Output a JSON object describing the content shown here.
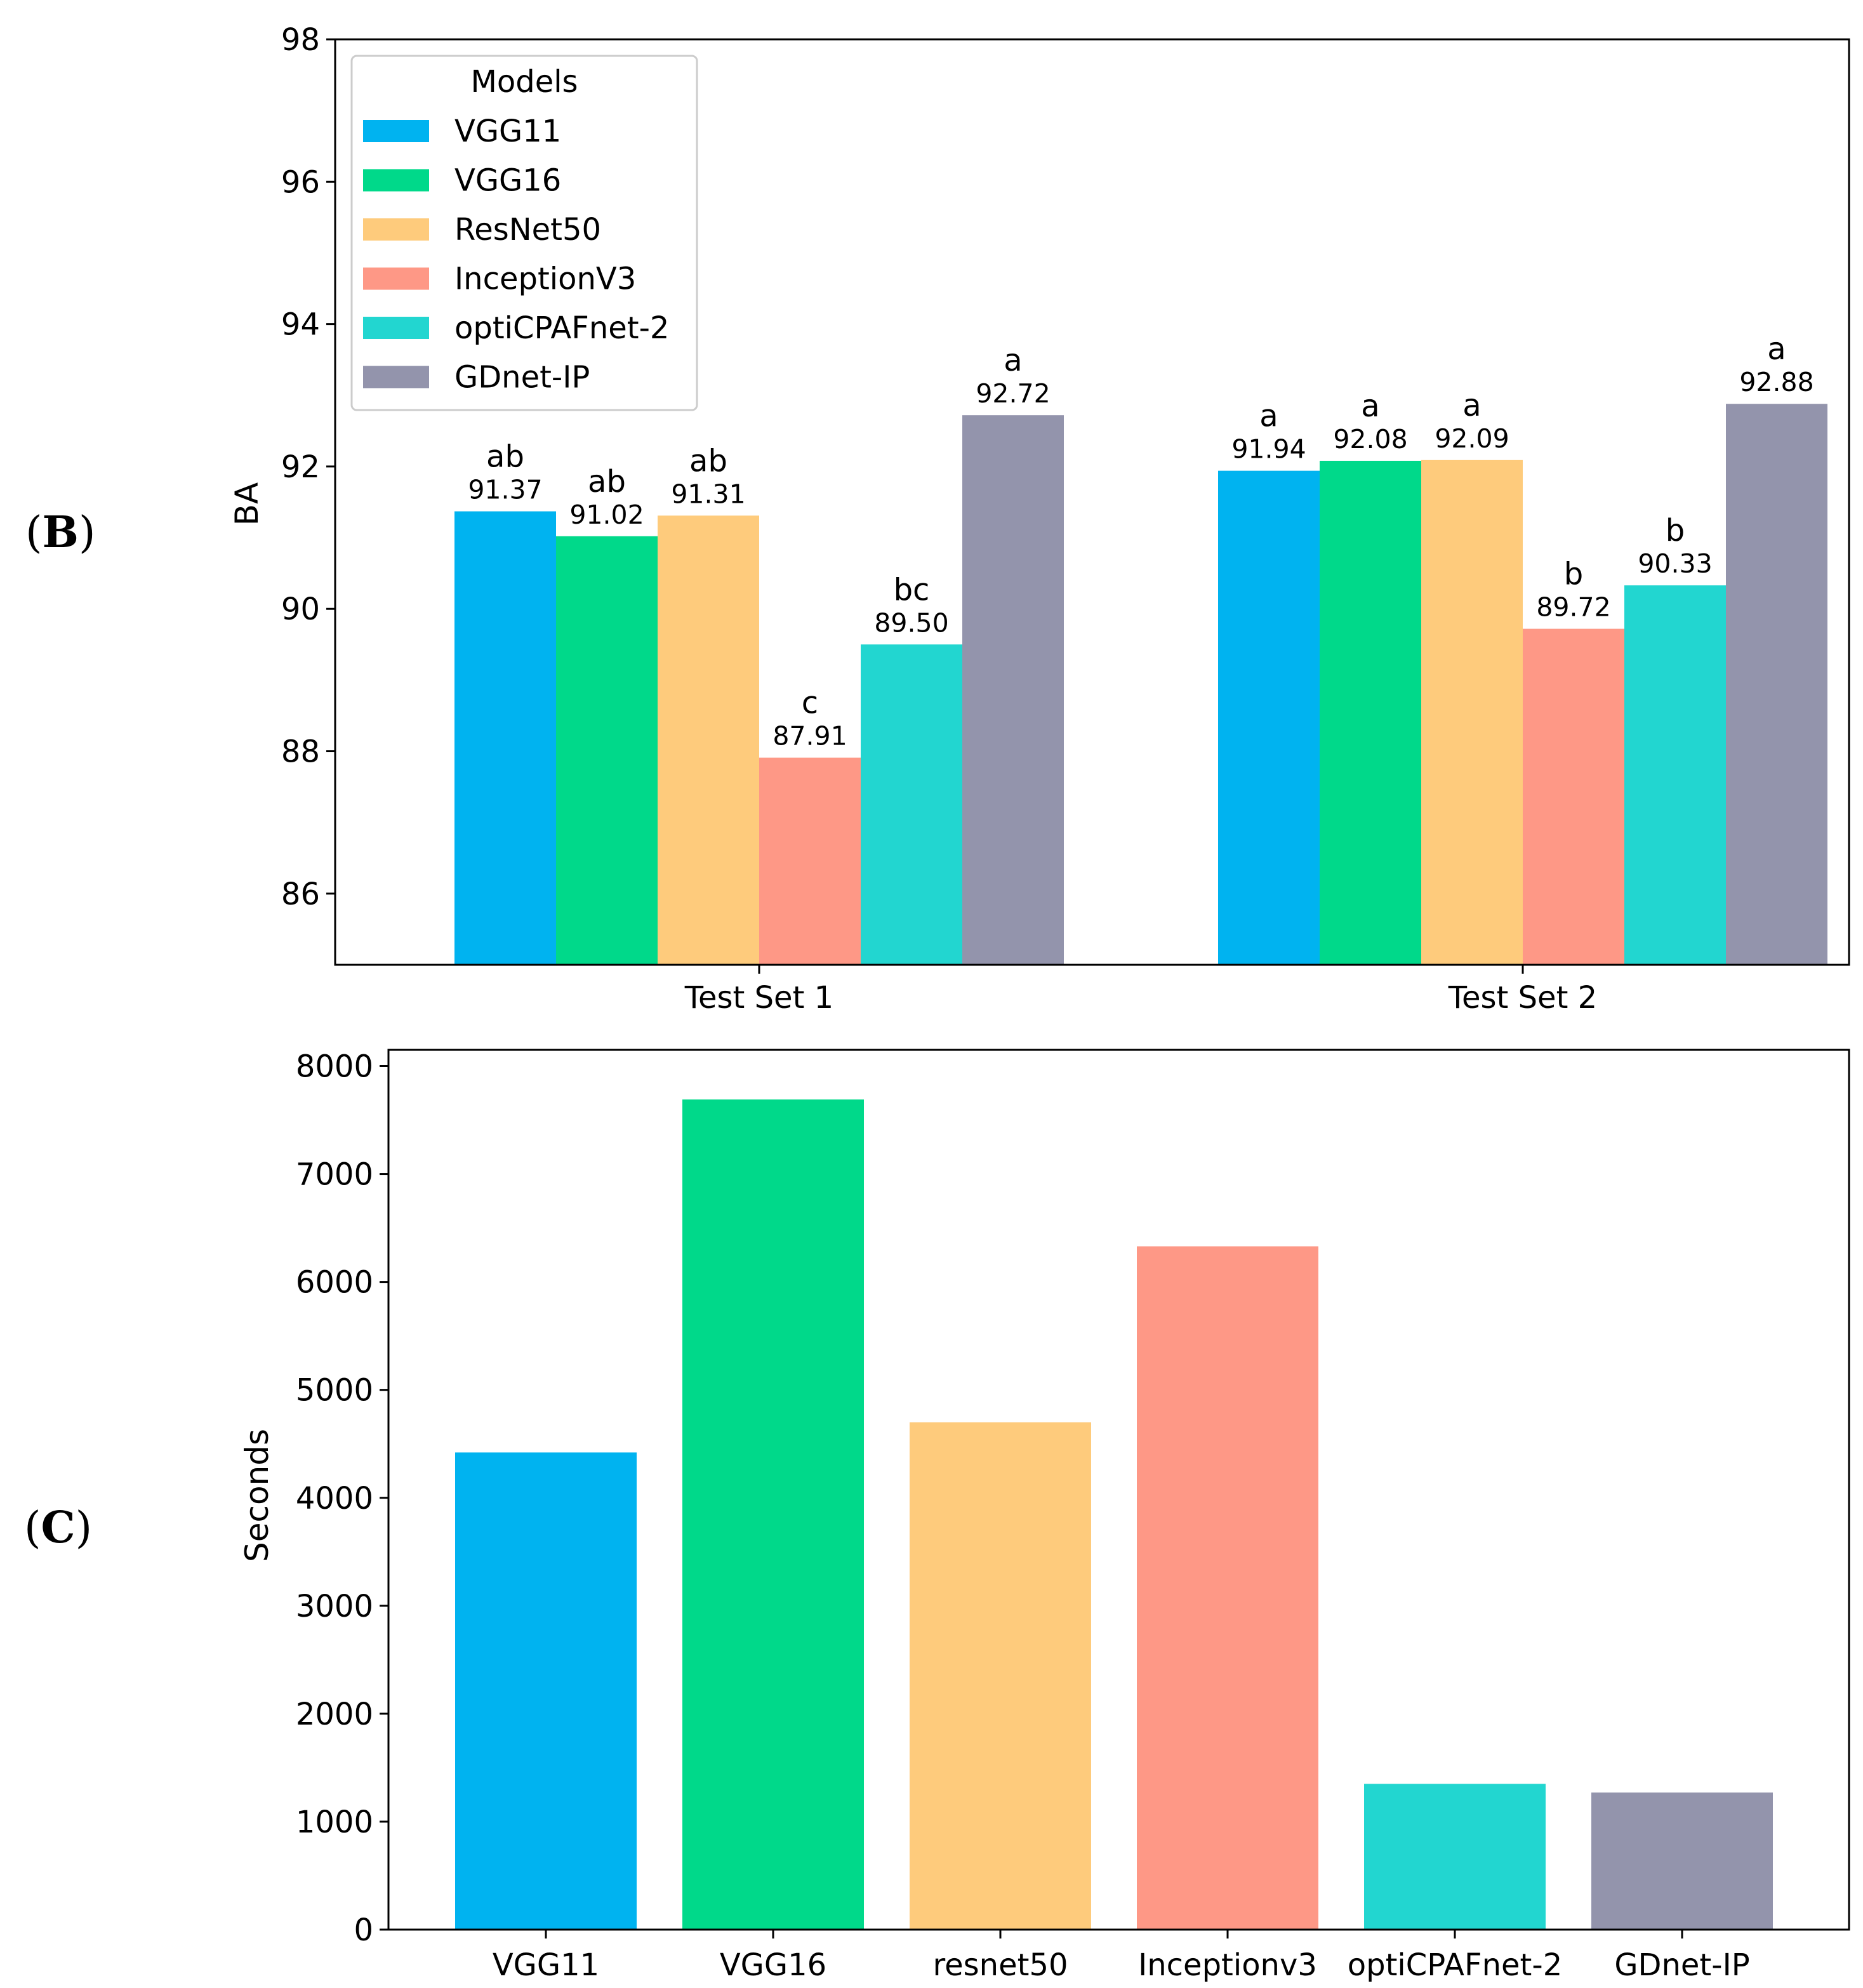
{
  "panels": {
    "b_open": "(",
    "b_letter": "B",
    "b_close": ")",
    "c_open": "(",
    "c_letter": "C",
    "c_close": ")"
  },
  "colors": {
    "VGG11": "#00b3f0",
    "VGG16": "#00d98a",
    "ResNet50": "#fecb7c",
    "InceptionV3": "#fe9886",
    "optiCPAFnet-2": "#22d6d0",
    "GDnet-IP": "#9394ac"
  },
  "chart_data": [
    {
      "type": "bar",
      "title": "",
      "xlabel": "",
      "ylabel": "BA",
      "ylim": [
        85,
        98
      ],
      "yticks": [
        86,
        88,
        90,
        92,
        94,
        96,
        98
      ],
      "grid": false,
      "categories": [
        "Test Set 1",
        "Test Set 2"
      ],
      "legend": {
        "title": "Models",
        "position": "top-left"
      },
      "series": [
        {
          "name": "VGG11",
          "values": [
            91.37,
            91.94
          ],
          "labels": [
            "91.37",
            "91.94"
          ],
          "letters": [
            "ab",
            "a"
          ]
        },
        {
          "name": "VGG16",
          "values": [
            91.02,
            92.08
          ],
          "labels": [
            "91.02",
            "92.08"
          ],
          "letters": [
            "ab",
            "a"
          ]
        },
        {
          "name": "ResNet50",
          "values": [
            91.31,
            92.09
          ],
          "labels": [
            "91.31",
            "92.09"
          ],
          "letters": [
            "ab",
            "a"
          ]
        },
        {
          "name": "InceptionV3",
          "values": [
            87.91,
            89.72
          ],
          "labels": [
            "87.91",
            "89.72"
          ],
          "letters": [
            "c",
            "b"
          ]
        },
        {
          "name": "optiCPAFnet-2",
          "values": [
            89.5,
            90.33
          ],
          "labels": [
            "89.50",
            "90.33"
          ],
          "letters": [
            "bc",
            "b"
          ]
        },
        {
          "name": "GDnet-IP",
          "values": [
            92.72,
            92.88
          ],
          "labels": [
            "92.72",
            "92.88"
          ],
          "letters": [
            "a",
            "a"
          ]
        }
      ]
    },
    {
      "type": "bar",
      "title": "",
      "xlabel": "",
      "ylabel": "Seconds",
      "ylim": [
        0,
        8150
      ],
      "yticks": [
        0,
        1000,
        2000,
        3000,
        4000,
        5000,
        6000,
        7000,
        8000
      ],
      "grid": false,
      "categories": [
        "VGG11",
        "VGG16",
        "resnet50",
        "Inceptionv3",
        "optiCPAFnet-2",
        "GDnet-IP"
      ],
      "color_keys": [
        "VGG11",
        "VGG16",
        "ResNet50",
        "InceptionV3",
        "optiCPAFnet-2",
        "GDnet-IP"
      ],
      "values": [
        4420,
        7690,
        4700,
        6330,
        1350,
        1270
      ]
    }
  ]
}
